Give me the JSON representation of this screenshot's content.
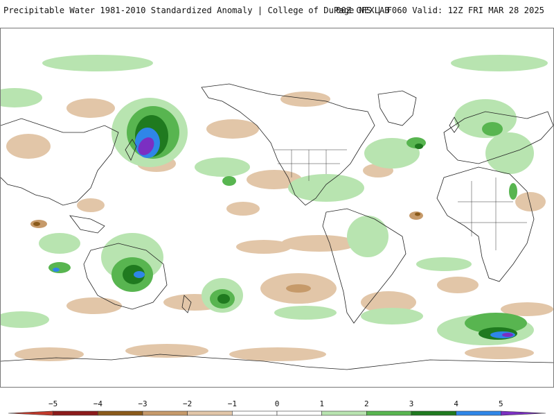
{
  "header": {
    "title": "Precipitable Water 1981-2010 Standardized Anomaly | College of DuPage NEXLAB",
    "run_info": "00Z GFS | F060 Valid: 12Z FRI MAR 28 2025"
  },
  "colorbar": {
    "min": -6,
    "max": 6,
    "tick_labels": [
      {
        "value": -5,
        "label": "−5"
      },
      {
        "value": -4,
        "label": "−4"
      },
      {
        "value": -3,
        "label": "−3"
      },
      {
        "value": -2,
        "label": "−2"
      },
      {
        "value": -1,
        "label": "−1"
      },
      {
        "value": 0,
        "label": "0"
      },
      {
        "value": 1,
        "label": "1"
      },
      {
        "value": 2,
        "label": "2"
      },
      {
        "value": 3,
        "label": "3"
      },
      {
        "value": 4,
        "label": "4"
      },
      {
        "value": 5,
        "label": "5"
      }
    ],
    "segments": [
      {
        "from": -6,
        "to": -5,
        "color": "#c0392b"
      },
      {
        "from": -5,
        "to": -4,
        "color": "#8b1a1a"
      },
      {
        "from": -4,
        "to": -3,
        "color": "#8a5a1a"
      },
      {
        "from": -3,
        "to": -2,
        "color": "#c69a6a"
      },
      {
        "from": -2,
        "to": -1,
        "color": "#e2c6a8"
      },
      {
        "from": -1,
        "to": 0,
        "color": "#ffffff"
      },
      {
        "from": 0,
        "to": 1,
        "color": "#ffffff"
      },
      {
        "from": 1,
        "to": 2,
        "color": "#b8e4b0"
      },
      {
        "from": 2,
        "to": 3,
        "color": "#58b550"
      },
      {
        "from": 3,
        "to": 4,
        "color": "#1f7a1f"
      },
      {
        "from": 4,
        "to": 5,
        "color": "#2f86e8"
      },
      {
        "from": 5,
        "to": 6,
        "color": "#7b2fc2"
      }
    ]
  },
  "colors": {
    "light_green": "#b8e4b0",
    "green": "#58b550",
    "dark_green": "#1f7a1f",
    "blue": "#2f86e8",
    "purple": "#7b2fc2",
    "light_tan": "#e2c6a8",
    "tan": "#c69a6a",
    "brown": "#8a5a1a",
    "coastline": "#222222"
  }
}
